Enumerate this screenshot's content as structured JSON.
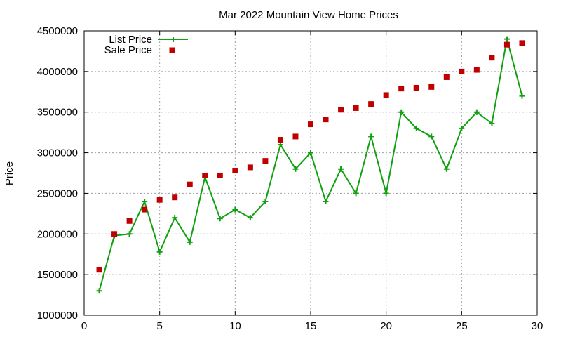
{
  "chart_data": {
    "type": "line",
    "title": "Mar 2022 Mountain View Home Prices",
    "xlabel": "",
    "ylabel": "Price",
    "xlim": [
      0,
      30
    ],
    "ylim": [
      1000000,
      4500000
    ],
    "x_ticks": [
      0,
      5,
      10,
      15,
      20,
      25,
      30
    ],
    "y_ticks": [
      1000000,
      1500000,
      2000000,
      2500000,
      3000000,
      3500000,
      4000000,
      4500000
    ],
    "grid": true,
    "legend_position": "top-left",
    "series": [
      {
        "name": "List Price",
        "style": "line-points",
        "marker": "plus",
        "color": "#10a010",
        "x": [
          1,
          2,
          3,
          4,
          5,
          6,
          7,
          8,
          9,
          10,
          11,
          12,
          13,
          14,
          15,
          16,
          17,
          18,
          19,
          20,
          21,
          22,
          23,
          24,
          25,
          26,
          27,
          28,
          29
        ],
        "values": [
          1300000,
          1980000,
          2000000,
          2400000,
          1780000,
          2200000,
          1900000,
          2700000,
          2190000,
          2300000,
          2200000,
          2400000,
          3100000,
          2800000,
          3000000,
          2400000,
          2800000,
          2500000,
          3200000,
          2500000,
          3500000,
          3300000,
          3200000,
          2800000,
          3300000,
          3500000,
          3360000,
          4400000,
          3700000
        ]
      },
      {
        "name": "Sale Price",
        "style": "points",
        "marker": "square",
        "color": "#c00000",
        "x": [
          1,
          2,
          3,
          4,
          5,
          6,
          7,
          8,
          9,
          10,
          11,
          12,
          13,
          14,
          15,
          16,
          17,
          18,
          19,
          20,
          21,
          22,
          23,
          24,
          25,
          26,
          27,
          28,
          29
        ],
        "values": [
          1560000,
          2000000,
          2160000,
          2300000,
          2420000,
          2450000,
          2610000,
          2720000,
          2720000,
          2780000,
          2820000,
          2900000,
          3160000,
          3200000,
          3350000,
          3410000,
          3530000,
          3550000,
          3600000,
          3710000,
          3790000,
          3800000,
          3810000,
          3930000,
          4000000,
          4020000,
          4170000,
          4330000,
          4350000
        ]
      }
    ]
  }
}
